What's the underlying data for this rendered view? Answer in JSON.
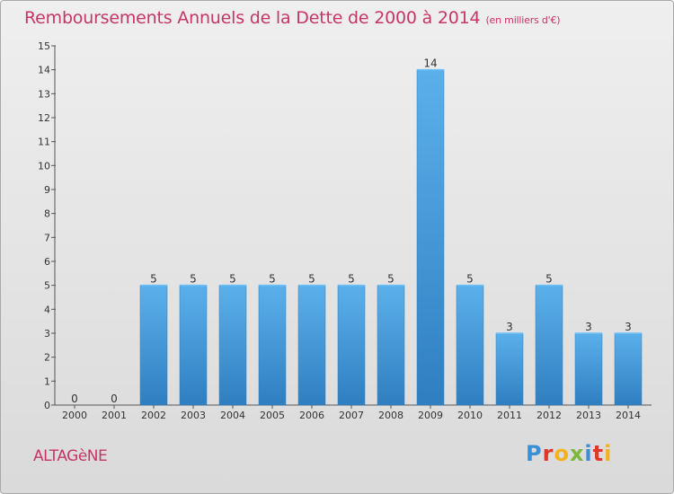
{
  "title": "Remboursements Annuels de la Dette de 2000 à 2014",
  "unit": "(en milliers d'€)",
  "commune": "ALTAGèNE",
  "logo": {
    "letters": [
      "P",
      "r",
      "o",
      "x",
      "i",
      "t",
      "i"
    ],
    "colors": [
      "#3b8fd4",
      "#e3352b",
      "#f3b21c",
      "#7cb83a",
      "#3b8fd4",
      "#e3352b",
      "#f3b21c"
    ]
  },
  "colors": {
    "bar": "#3d97db",
    "bar_light": "#5bb0ea",
    "bar_dark": "#2f7fc0",
    "title": "#c63667"
  },
  "chart_data": {
    "type": "bar",
    "categories": [
      "2000",
      "2001",
      "2002",
      "2003",
      "2004",
      "2005",
      "2006",
      "2007",
      "2008",
      "2009",
      "2010",
      "2011",
      "2012",
      "2013",
      "2014"
    ],
    "values": [
      0,
      0,
      5,
      5,
      5,
      5,
      5,
      5,
      5,
      14,
      5,
      3,
      5,
      3,
      3
    ],
    "data_labels": [
      "0",
      "0",
      "5",
      "5",
      "5",
      "5",
      "5",
      "5",
      "5",
      "14",
      "5",
      "3",
      "5",
      "3",
      "3"
    ],
    "y_ticks": [
      0,
      1,
      2,
      3,
      4,
      5,
      6,
      7,
      8,
      9,
      10,
      11,
      12,
      13,
      14,
      15
    ],
    "ylim": [
      0,
      15
    ],
    "xlabel": "",
    "ylabel": "",
    "grid": false
  }
}
